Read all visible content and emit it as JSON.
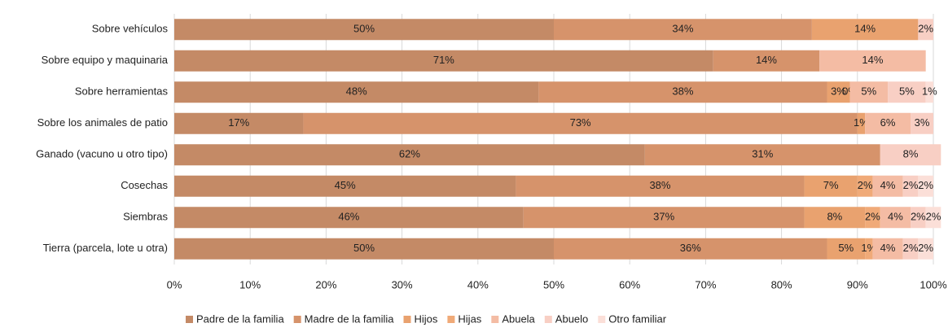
{
  "chart_data": {
    "type": "bar",
    "orientation": "horizontal",
    "stacked": true,
    "categories": [
      "Sobre vehículos",
      "Sobre equipo y maquinaria",
      "Sobre herramientas",
      "Sobre los animales de patio",
      "Ganado (vacuno u otro tipo)",
      "Cosechas",
      "Siembras",
      "Tierra (parcela, lote u otra)"
    ],
    "series": [
      {
        "name": "Padre de la familia",
        "color": "#c48a66",
        "values": [
          50,
          71,
          48,
          17,
          62,
          45,
          46,
          50
        ],
        "value_labels": [
          "50%",
          "71%",
          "48%",
          "17%",
          "62%",
          "45%",
          "46%",
          "50%"
        ]
      },
      {
        "name": "Madre de la familia",
        "color": "#d6936b",
        "values": [
          34,
          14,
          38,
          73,
          31,
          38,
          37,
          36
        ],
        "value_labels": [
          "34%",
          "14%",
          "38%",
          "73%",
          "31%",
          "38%",
          "37%",
          "36%"
        ]
      },
      {
        "name": "Hijos",
        "color": "#e9a26f",
        "values": [
          14,
          null,
          3,
          1,
          null,
          7,
          8,
          5
        ],
        "value_labels": [
          "14%",
          null,
          "3%",
          "1%",
          null,
          "7%",
          "8%",
          "5%"
        ]
      },
      {
        "name": "Hijas",
        "color": "#f0aa78",
        "values": [
          null,
          null,
          0,
          null,
          null,
          2,
          2,
          1
        ],
        "value_labels": [
          null,
          null,
          "0%",
          null,
          null,
          "2%",
          "2%",
          "1%"
        ]
      },
      {
        "name": "Abuela",
        "color": "#f4bca4",
        "values": [
          null,
          14,
          5,
          6,
          null,
          4,
          4,
          4
        ],
        "value_labels": [
          null,
          "14%",
          "5%",
          "6%",
          null,
          "4%",
          "4%",
          "4%"
        ]
      },
      {
        "name": "Abuelo",
        "color": "#f8cfc4",
        "values": [
          2,
          null,
          5,
          3,
          8,
          2,
          2,
          2
        ],
        "value_labels": [
          "2%",
          null,
          "5%",
          "3%",
          "8%",
          "2%",
          "2%",
          "2%"
        ]
      },
      {
        "name": "Otro familiar",
        "color": "#fbdfd8",
        "values": [
          null,
          null,
          1,
          null,
          null,
          2,
          2,
          2
        ],
        "value_labels": [
          null,
          null,
          "1%",
          null,
          null,
          "2%",
          "2%",
          "2%"
        ]
      }
    ],
    "xlim": [
      0,
      100
    ],
    "xticks": [
      {
        "value": 0,
        "label": "0%"
      },
      {
        "value": 10,
        "label": "10%"
      },
      {
        "value": 20,
        "label": "20%"
      },
      {
        "value": 30,
        "label": "30%"
      },
      {
        "value": 40,
        "label": "40%"
      },
      {
        "value": 50,
        "label": "50%"
      },
      {
        "value": 60,
        "label": "60%"
      },
      {
        "value": 70,
        "label": "70%"
      },
      {
        "value": 80,
        "label": "80%"
      },
      {
        "value": 90,
        "label": "90%"
      },
      {
        "value": 100,
        "label": "100%"
      }
    ],
    "grid": true,
    "legend": "bottom"
  }
}
